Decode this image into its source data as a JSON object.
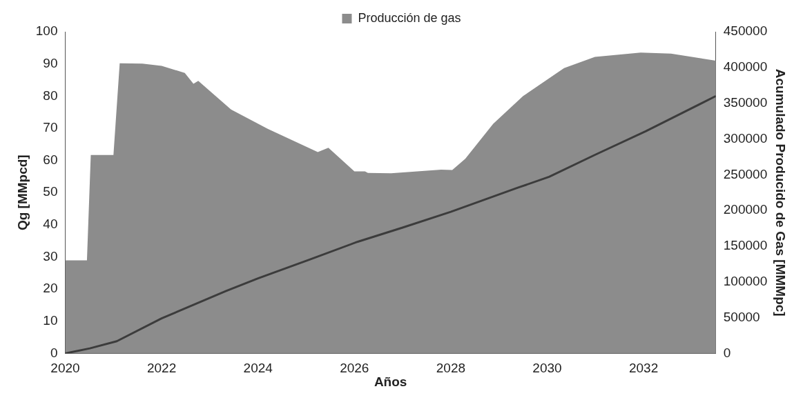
{
  "chart_data": {
    "type": "area",
    "xlabel": "Años",
    "ylabel": "Qg [MMpcd]",
    "y2label": "Acumulado Producido de Gas [MMMpc]",
    "xlim": [
      2020,
      2033.5
    ],
    "xticks": [
      2020,
      2022,
      2024,
      2026,
      2028,
      2030,
      2032
    ],
    "ylim": [
      0,
      100
    ],
    "yticks": [
      0,
      10,
      20,
      30,
      40,
      50,
      60,
      70,
      80,
      90,
      100
    ],
    "y2lim": [
      0,
      450000
    ],
    "y2ticks": [
      0,
      50000,
      100000,
      150000,
      200000,
      250000,
      300000,
      350000,
      400000,
      450000
    ],
    "legend": "top",
    "grid": false,
    "marker": "none",
    "series": [
      {
        "name": "Producción de gas",
        "color": "#8c8c8c",
        "x": [
          2020,
          2020.45,
          2020.53,
          2021.0,
          2021.13,
          2021.6,
          2022.0,
          2022.48,
          2022.66,
          2022.76,
          2023.44,
          2024.2,
          2025.24,
          2025.46,
          2026.0,
          2026.22,
          2026.28,
          2026.76,
          2027.8,
          2028.03,
          2028.3,
          2028.88,
          2029.5,
          2030.35,
          2030.99,
          2031.94,
          2032.57,
          2033.5
        ],
        "values": [
          28.9,
          28.9,
          61.7,
          61.7,
          90.2,
          90.1,
          89.4,
          87.2,
          83.8,
          84.7,
          75.8,
          69.8,
          62.6,
          63.9,
          56.6,
          56.6,
          56.1,
          56,
          57.1,
          57,
          60.5,
          71.4,
          80,
          88.7,
          92.2,
          93.5,
          93.2,
          91
        ]
      },
      {
        "type": "line",
        "axis": "y2",
        "color": "#3c3c3c",
        "x": [
          2020,
          2020.51,
          2021.07,
          2022,
          2023.33,
          2024,
          2025.1,
          2026.06,
          2027,
          2028,
          2029.4,
          2030.04,
          2031,
          2032.05,
          2033.5
        ],
        "values": [
          0,
          7000,
          17000,
          49000,
          87000,
          105000,
          132000,
          156000,
          176000,
          198000,
          232000,
          247000,
          278000,
          311000,
          360000
        ]
      }
    ]
  }
}
